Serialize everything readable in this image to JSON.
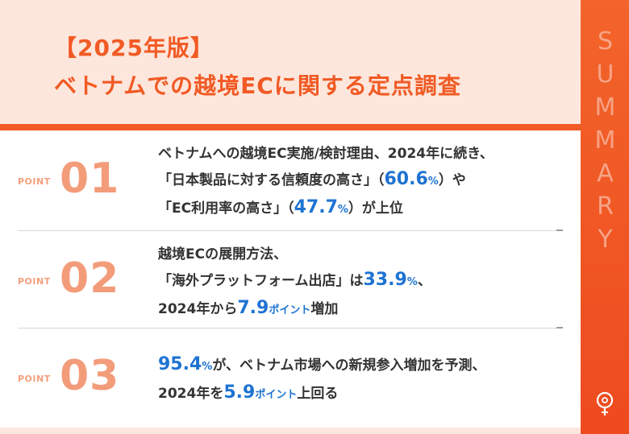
{
  "header": {
    "title_line1": "【2025年版】",
    "title_line2": "ベトナムでの越境ECに関する定点調査"
  },
  "sidebar": {
    "label": "SUMMARY"
  },
  "points": [
    {
      "label": "POINT",
      "number": "01",
      "line1": "ベトナムへの越境EC実施/検討理由、2024年に続き、",
      "line2_a": "「日本製品に対する信頼度の高さ」（",
      "line2_value": "60.6",
      "line2_unit": "%",
      "line2_b": "）や",
      "line3_a": "「EC利用率の高さ」（",
      "line3_value": "47.7",
      "line3_unit": "%",
      "line3_b": "）が上位"
    },
    {
      "label": "POINT",
      "number": "02",
      "line1": "越境ECの展開方法、",
      "line2_a": "「海外プラットフォーム出店」は",
      "line2_value": "33.9",
      "line2_unit": "%",
      "line2_b": "、",
      "line3_a": "2024年から",
      "line3_value": "7.9",
      "line3_unit": "ポイント",
      "line3_b": "増加"
    },
    {
      "label": "POINT",
      "number": "03",
      "line1_value": "95.4",
      "line1_unit": "%",
      "line1_b": "が、ベトナム市場への新規参入増加を予測、",
      "line2_a": "2024年を",
      "line2_value": "5.9",
      "line2_unit": "ポイント",
      "line2_b": "上回る"
    }
  ],
  "colors": {
    "accent": "#f15a24",
    "highlight": "#1e73d2",
    "point_number": "#f39c7a",
    "header_bg": "#fde6dc"
  }
}
